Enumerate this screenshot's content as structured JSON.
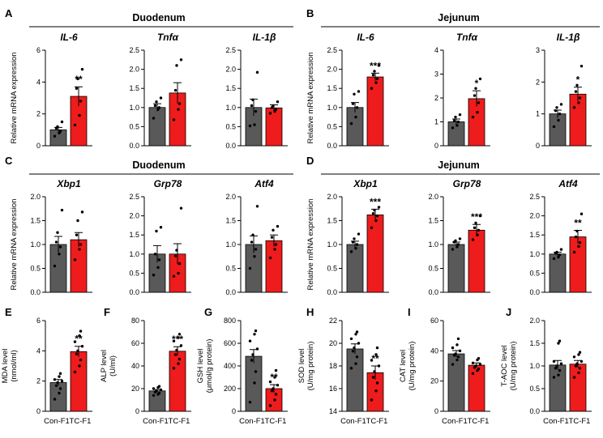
{
  "colors": {
    "control": "#595959",
    "treatment": "#ee1c1c"
  },
  "sections": [
    {
      "letter": "A",
      "title": "Duodenum"
    },
    {
      "letter": "B",
      "title": "Jejunum"
    },
    {
      "letter": "C",
      "title": "Duodenum"
    },
    {
      "letter": "D",
      "title": "Jejunum"
    }
  ],
  "mrna_ylabel": "Relative mRNA expression",
  "group_labels": [
    "Con-F1",
    "TC-F1"
  ],
  "chart_data": [
    {
      "type": "bar",
      "panel": "A",
      "title": "IL-6",
      "ylabel": "Relative mRNA expression",
      "ylim": [
        0,
        6
      ],
      "yticks": [
        0,
        2,
        4,
        6
      ],
      "tick_labels": [
        "0",
        "2",
        "4",
        "6"
      ],
      "categories": [
        "Con-F1",
        "TC-F1"
      ],
      "values": [
        1.0,
        3.1
      ],
      "errors": [
        0.15,
        0.6
      ],
      "significance": "**",
      "points": [
        [
          0.6,
          0.8,
          0.9,
          1.1,
          1.2,
          1.5
        ],
        [
          1.3,
          1.9,
          2.8,
          3.6,
          4.2,
          4.8
        ]
      ]
    },
    {
      "type": "bar",
      "panel": "A",
      "title": "Tnfα",
      "ylabel": "",
      "ylim": [
        0,
        2.5
      ],
      "yticks": [
        0,
        0.5,
        1,
        1.5,
        2,
        2.5
      ],
      "tick_labels": [
        "0.0",
        "0.5",
        "1.0",
        "1.5",
        "2.0",
        "2.5"
      ],
      "categories": [
        "Con-F1",
        "TC-F1"
      ],
      "values": [
        1.0,
        1.38
      ],
      "errors": [
        0.1,
        0.27
      ],
      "significance": "",
      "points": [
        [
          0.72,
          0.95,
          1.0,
          1.05,
          1.15,
          1.25
        ],
        [
          0.68,
          0.95,
          1.1,
          1.45,
          2.1,
          2.25
        ]
      ]
    },
    {
      "type": "bar",
      "panel": "A",
      "title": "IL-1β",
      "ylabel": "",
      "ylim": [
        0,
        2.5
      ],
      "yticks": [
        0,
        0.5,
        1,
        1.5,
        2,
        2.5
      ],
      "tick_labels": [
        "0.0",
        "0.5",
        "1.0",
        "1.5",
        "2.0",
        "2.5"
      ],
      "categories": [
        "Con-F1",
        "TC-F1"
      ],
      "values": [
        1.0,
        0.99
      ],
      "errors": [
        0.22,
        0.08
      ],
      "significance": "",
      "points": [
        [
          0.52,
          0.55,
          0.9,
          1.05,
          1.2,
          1.92
        ],
        [
          0.85,
          0.9,
          0.95,
          1.0,
          1.05,
          1.15
        ]
      ]
    },
    {
      "type": "bar",
      "panel": "B",
      "title": "IL-6",
      "ylabel": "Relative mRNA expression",
      "ylim": [
        0,
        2.5
      ],
      "yticks": [
        0,
        0.5,
        1,
        1.5,
        2,
        2.5
      ],
      "tick_labels": [
        "0.0",
        "0.5",
        "1.0",
        "1.5",
        "2.0",
        "2.5"
      ],
      "categories": [
        "Con-F1",
        "TC-F1"
      ],
      "values": [
        1.0,
        1.8
      ],
      "errors": [
        0.13,
        0.1
      ],
      "significance": "***",
      "points": [
        [
          0.58,
          0.75,
          1.0,
          1.1,
          1.35,
          1.42
        ],
        [
          1.5,
          1.65,
          1.75,
          1.85,
          1.95,
          2.1
        ]
      ]
    },
    {
      "type": "bar",
      "panel": "B",
      "title": "Tnfα",
      "ylabel": "",
      "ylim": [
        0,
        4
      ],
      "yticks": [
        0,
        1,
        2,
        3,
        4
      ],
      "tick_labels": [
        "0",
        "1",
        "2",
        "3",
        "4"
      ],
      "categories": [
        "Con-F1",
        "TC-F1"
      ],
      "values": [
        1.0,
        1.97
      ],
      "errors": [
        0.12,
        0.33
      ],
      "significance": "*",
      "points": [
        [
          0.75,
          0.85,
          1.0,
          1.05,
          1.2,
          1.3
        ],
        [
          1.2,
          1.4,
          1.8,
          2.1,
          2.4,
          2.8
        ]
      ]
    },
    {
      "type": "bar",
      "panel": "B",
      "title": "IL-1β",
      "ylabel": "",
      "ylim": [
        0,
        3
      ],
      "yticks": [
        0,
        1,
        2,
        3
      ],
      "tick_labels": [
        "0",
        "1",
        "2",
        "3"
      ],
      "categories": [
        "Con-F1",
        "TC-F1"
      ],
      "values": [
        1.0,
        1.62
      ],
      "errors": [
        0.12,
        0.22
      ],
      "significance": "*",
      "points": [
        [
          0.6,
          0.8,
          1.0,
          1.1,
          1.2,
          1.3
        ],
        [
          1.2,
          1.35,
          1.5,
          1.7,
          1.9,
          2.5
        ]
      ]
    },
    {
      "type": "bar",
      "panel": "C",
      "title": "Xbp1",
      "ylabel": "Relative mRNA expression",
      "ylim": [
        0,
        2.0
      ],
      "yticks": [
        0,
        0.5,
        1,
        1.5,
        2
      ],
      "tick_labels": [
        "0.0",
        "0.5",
        "1.0",
        "1.5",
        "2.0"
      ],
      "categories": [
        "Con-F1",
        "TC-F1"
      ],
      "values": [
        1.0,
        1.1
      ],
      "errors": [
        0.17,
        0.15
      ],
      "significance": "",
      "points": [
        [
          0.55,
          0.8,
          0.95,
          1.05,
          1.25,
          1.72
        ],
        [
          0.68,
          0.9,
          1.0,
          1.2,
          1.5,
          1.68
        ]
      ]
    },
    {
      "type": "bar",
      "panel": "C",
      "title": "Grp78",
      "ylabel": "",
      "ylim": [
        0,
        2.5
      ],
      "yticks": [
        0,
        0.5,
        1,
        1.5,
        2,
        2.5
      ],
      "tick_labels": [
        "0.0",
        "0.5",
        "1.0",
        "1.5",
        "2.0",
        "2.5"
      ],
      "categories": [
        "Con-F1",
        "TC-F1"
      ],
      "values": [
        1.0,
        1.0
      ],
      "errors": [
        0.22,
        0.27
      ],
      "significance": "",
      "points": [
        [
          0.45,
          0.65,
          0.85,
          1.0,
          1.6,
          1.7
        ],
        [
          0.42,
          0.5,
          0.75,
          0.95,
          1.1,
          2.2
        ]
      ]
    },
    {
      "type": "bar",
      "panel": "C",
      "title": "Atf4",
      "ylabel": "",
      "ylim": [
        0,
        2.0
      ],
      "yticks": [
        0,
        0.5,
        1,
        1.5,
        2
      ],
      "tick_labels": [
        "0.0",
        "0.5",
        "1.0",
        "1.5",
        "2.0"
      ],
      "categories": [
        "Con-F1",
        "TC-F1"
      ],
      "values": [
        1.0,
        1.08
      ],
      "errors": [
        0.18,
        0.12
      ],
      "significance": "",
      "points": [
        [
          0.5,
          0.75,
          0.9,
          1.05,
          1.2,
          1.8
        ],
        [
          0.72,
          0.9,
          1.0,
          1.15,
          1.3,
          1.38
        ]
      ]
    },
    {
      "type": "bar",
      "panel": "D",
      "title": "Xbp1",
      "ylabel": "Relative mRNA expression",
      "ylim": [
        0,
        2.0
      ],
      "yticks": [
        0,
        0.5,
        1,
        1.5,
        2
      ],
      "tick_labels": [
        "0.0",
        "0.5",
        "1.0",
        "1.5",
        "2.0"
      ],
      "categories": [
        "Con-F1",
        "TC-F1"
      ],
      "values": [
        1.0,
        1.62
      ],
      "errors": [
        0.07,
        0.12
      ],
      "significance": "***",
      "points": [
        [
          0.85,
          0.92,
          1.0,
          1.05,
          1.12,
          1.22
        ],
        [
          1.35,
          1.5,
          1.6,
          1.65,
          1.72,
          1.78
        ]
      ]
    },
    {
      "type": "bar",
      "panel": "D",
      "title": "Grp78",
      "ylabel": "",
      "ylim": [
        0,
        2.0
      ],
      "yticks": [
        0,
        0.5,
        1,
        1.5,
        2
      ],
      "tick_labels": [
        "0.0",
        "0.5",
        "1.0",
        "1.5",
        "2.0"
      ],
      "categories": [
        "Con-F1",
        "TC-F1"
      ],
      "values": [
        1.0,
        1.3
      ],
      "errors": [
        0.05,
        0.12
      ],
      "significance": "***",
      "points": [
        [
          0.9,
          0.95,
          1.0,
          1.05,
          1.08,
          1.12
        ],
        [
          1.1,
          1.2,
          1.3,
          1.35,
          1.45,
          1.6
        ]
      ]
    },
    {
      "type": "bar",
      "panel": "D",
      "title": "Atf4",
      "ylabel": "",
      "ylim": [
        0,
        2.5
      ],
      "yticks": [
        0,
        0.5,
        1,
        1.5,
        2,
        2.5
      ],
      "tick_labels": [
        "0.0",
        "0.5",
        "1.0",
        "1.5",
        "2.0",
        "2.5"
      ],
      "categories": [
        "Con-F1",
        "TC-F1"
      ],
      "values": [
        1.0,
        1.45
      ],
      "errors": [
        0.05,
        0.17
      ],
      "significance": "**",
      "points": [
        [
          0.88,
          0.92,
          0.98,
          1.02,
          1.05,
          1.12
        ],
        [
          1.05,
          1.2,
          1.3,
          1.45,
          1.6,
          2.05
        ]
      ]
    },
    {
      "type": "bar",
      "panel": "E",
      "title": "",
      "ylabel": "MDA level\n(nmol/ml)",
      "ylim": [
        0,
        6
      ],
      "yticks": [
        0,
        2,
        4,
        6
      ],
      "tick_labels": [
        "0",
        "2",
        "4",
        "6"
      ],
      "categories": [
        "Con-F1",
        "TC-F1"
      ],
      "values": [
        1.9,
        3.95
      ],
      "errors": [
        0.2,
        0.35
      ],
      "significance": "**",
      "points": [
        [
          0.8,
          1.2,
          1.5,
          1.7,
          1.9,
          2.0,
          2.1,
          2.3,
          2.5
        ],
        [
          2.6,
          3.0,
          3.4,
          3.8,
          4.0,
          4.3,
          4.6,
          5.0,
          5.3
        ]
      ]
    },
    {
      "type": "bar",
      "panel": "F",
      "title": "",
      "ylabel": "ALP level\n(U/ml)",
      "ylim": [
        0,
        80
      ],
      "yticks": [
        0,
        20,
        40,
        60,
        80
      ],
      "tick_labels": [
        "0",
        "20",
        "40",
        "60",
        "80"
      ],
      "categories": [
        "Con-F1",
        "TC-F1"
      ],
      "values": [
        18,
        53
      ],
      "errors": [
        1.2,
        4
      ],
      "significance": "***",
      "points": [
        [
          14,
          15,
          16,
          17,
          18,
          19,
          20,
          21,
          22
        ],
        [
          38,
          42,
          46,
          50,
          54,
          58,
          62,
          65,
          68
        ]
      ]
    },
    {
      "type": "bar",
      "panel": "G",
      "title": "",
      "ylabel": "GSH level\n(μmol/g protein)",
      "ylim": [
        0,
        800
      ],
      "yticks": [
        0,
        200,
        400,
        600,
        800
      ],
      "tick_labels": [
        "0",
        "200",
        "400",
        "600",
        "800"
      ],
      "categories": [
        "Con-F1",
        "TC-F1"
      ],
      "values": [
        485,
        200
      ],
      "errors": [
        60,
        35
      ],
      "significance": "**",
      "points": [
        [
          80,
          250,
          350,
          450,
          500,
          550,
          620,
          680,
          710
        ],
        [
          50,
          100,
          150,
          180,
          200,
          230,
          260,
          300,
          360
        ]
      ]
    },
    {
      "type": "bar",
      "panel": "H",
      "title": "",
      "ylabel": "SOD level\n(U/mg protein)",
      "ylim": [
        14,
        22
      ],
      "yticks": [
        14,
        16,
        18,
        20,
        22
      ],
      "tick_labels": [
        "14",
        "16",
        "18",
        "20",
        "22"
      ],
      "categories": [
        "Con-F1",
        "TC-F1"
      ],
      "values": [
        19.5,
        17.4
      ],
      "errors": [
        0.45,
        0.6
      ],
      "significance": "**",
      "points": [
        [
          17.8,
          18.2,
          18.8,
          19.3,
          19.6,
          20.0,
          20.4,
          20.8,
          21.0
        ],
        [
          15.0,
          15.8,
          16.5,
          17.0,
          17.5,
          18.0,
          18.5,
          19.0,
          19.6
        ]
      ]
    },
    {
      "type": "bar",
      "panel": "I",
      "title": "",
      "ylabel": "CAT level\n(U/mg protein)",
      "ylim": [
        0,
        60
      ],
      "yticks": [
        0,
        20,
        40,
        60
      ],
      "tick_labels": [
        "0",
        "20",
        "40",
        "60"
      ],
      "categories": [
        "Con-F1",
        "TC-F1"
      ],
      "values": [
        38,
        30.5
      ],
      "errors": [
        2.2,
        1.5
      ],
      "significance": "",
      "points": [
        [
          31,
          34,
          36,
          37,
          38,
          40,
          42,
          44,
          48
        ],
        [
          25,
          27,
          28,
          29,
          30,
          31,
          32,
          34,
          35
        ]
      ]
    },
    {
      "type": "bar",
      "panel": "J",
      "title": "",
      "ylabel": "T-AOC level\n(U/mg protein)",
      "ylim": [
        0,
        2.0
      ],
      "yticks": [
        0,
        0.5,
        1,
        1.5,
        2
      ],
      "tick_labels": [
        "0.0",
        "0.5",
        "1.0",
        "1.5",
        "2.0"
      ],
      "categories": [
        "Con-F1",
        "TC-F1"
      ],
      "values": [
        1.02,
        1.04
      ],
      "errors": [
        0.1,
        0.08
      ],
      "significance": "",
      "points": [
        [
          0.75,
          0.8,
          0.9,
          0.95,
          1.0,
          1.05,
          1.1,
          1.5,
          1.55
        ],
        [
          0.75,
          0.85,
          0.95,
          1.0,
          1.05,
          1.1,
          1.2,
          1.25,
          1.3
        ]
      ]
    }
  ]
}
